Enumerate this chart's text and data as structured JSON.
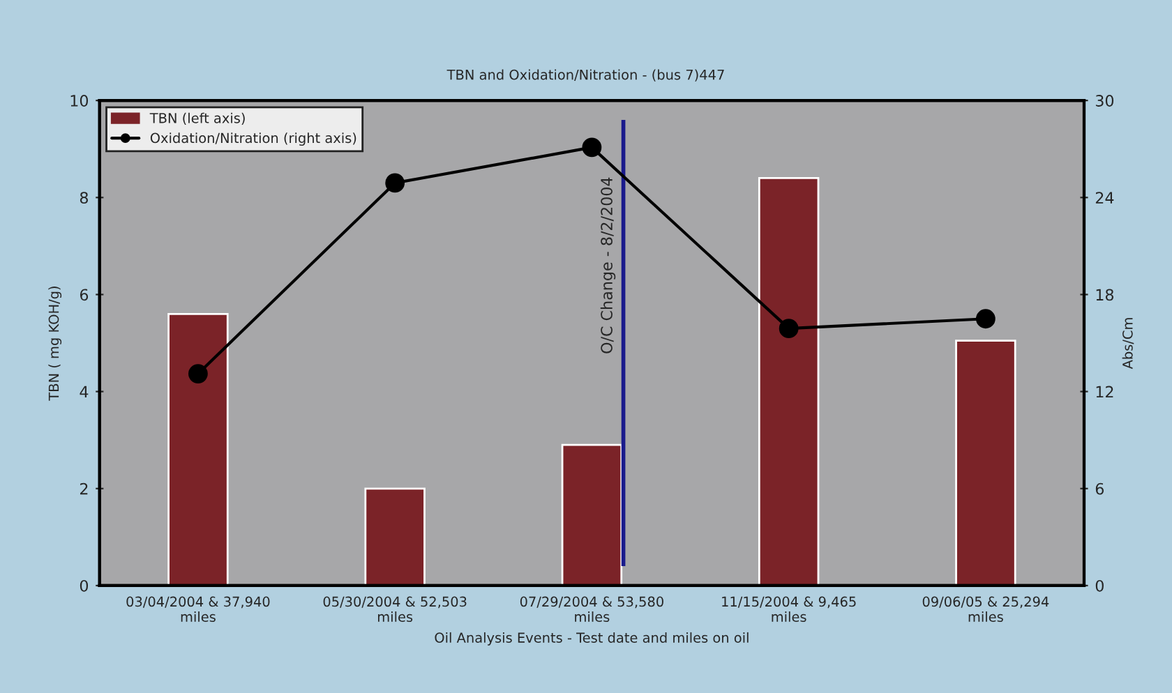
{
  "chart_data": {
    "type": "bar",
    "title": "TBN and Oxidation/Nitration - (bus 7)447",
    "xlabel": "Oil Analysis Events - Test date and miles on oil",
    "ylabel": "TBN ( mg KOH/g)",
    "y2label": "Abs/Cm",
    "categories": [
      "03/04/2004 & 37,940 miles",
      "05/30/2004 & 52,503 miles",
      "07/29/2004 & 53,580 miles",
      "11/15/2004 & 9,465 miles",
      "09/06/05 & 25,294 miles"
    ],
    "series": [
      {
        "name": "TBN (left axis)",
        "type": "bar",
        "color": "#7b2328",
        "values": [
          5.6,
          2.0,
          2.9,
          8.4,
          5.05
        ]
      },
      {
        "name": "Oxidation/Nitration (right axis)",
        "type": "line",
        "axis": "y2",
        "color": "#000000",
        "marker": "circle",
        "values": [
          13.1,
          24.9,
          27.1,
          15.9,
          16.5
        ]
      }
    ],
    "ylim": [
      0,
      10
    ],
    "yticks": [
      0,
      2,
      4,
      6,
      8,
      10
    ],
    "y2lim": [
      0,
      30
    ],
    "y2ticks": [
      0,
      6,
      12,
      18,
      24,
      30
    ],
    "annotations": [
      {
        "text": "O/C Change - 8/2/2004"
      }
    ],
    "legend": "top left",
    "grid": false
  }
}
